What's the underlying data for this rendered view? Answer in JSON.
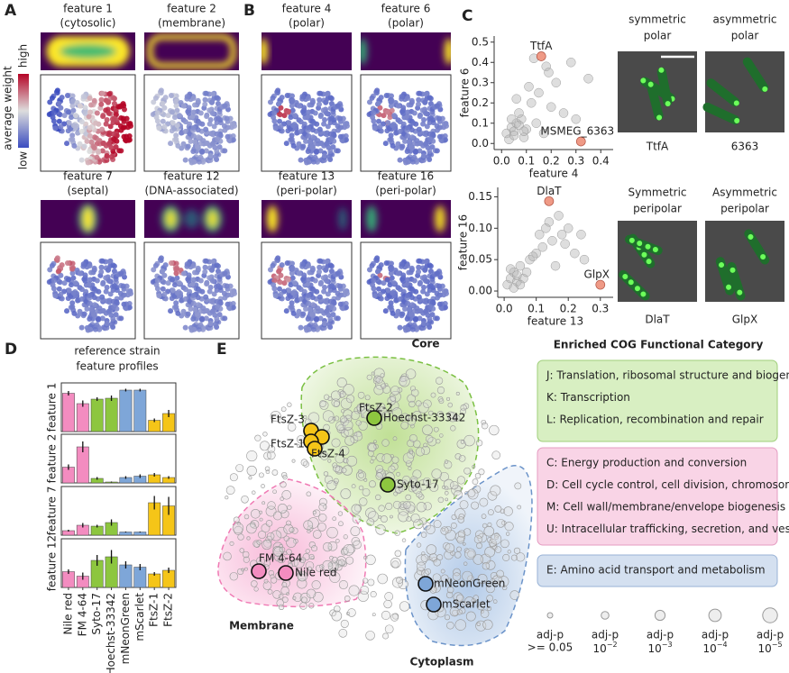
{
  "panels": {
    "A": {
      "label": "A",
      "features": [
        {
          "name": "feature 1",
          "kind": "(cytosolic)"
        },
        {
          "name": "feature 2",
          "kind": "(membrane)"
        },
        {
          "name": "feature 7",
          "kind": "(septal)"
        },
        {
          "name": "feature 12",
          "kind": "(DNA-associated)"
        }
      ],
      "colorbar": {
        "title": "average weight",
        "high": "high",
        "low": "low"
      }
    },
    "B": {
      "label": "B",
      "features": [
        {
          "name": "feature 4",
          "kind": "(polar)"
        },
        {
          "name": "feature 6",
          "kind": "(polar)"
        },
        {
          "name": "feature 13",
          "kind": "(peri-polar)"
        },
        {
          "name": "feature 16",
          "kind": "(peri-polar)"
        }
      ]
    },
    "C": {
      "label": "C",
      "images": [
        {
          "title": [
            "symmetric",
            "polar"
          ],
          "caption": "TtfA"
        },
        {
          "title": [
            "asymmetric",
            "polar"
          ],
          "caption": "6363"
        },
        {
          "title": [
            "Symmetric",
            "peripolar"
          ],
          "caption": "DlaT"
        },
        {
          "title": [
            "Asymmetric",
            "peripolar"
          ],
          "caption": "GlpX"
        }
      ]
    },
    "D": {
      "label": "D"
    },
    "E": {
      "label": "E",
      "regions": [
        "Core",
        "Membrane",
        "Cytoplasm"
      ],
      "markers": [
        "FtsZ-3",
        "FtsZ-2",
        "FtsZ-1",
        "FtsZ-4",
        "Hoechst-33342",
        "Syto-17",
        "FM 4-64",
        "Nile red",
        "mNeonGreen",
        "mScarlet"
      ]
    },
    "cog": {
      "title": "Enriched COG Functional Category",
      "groups": [
        [
          "J: Translation, ribosomal structure and biogenesis",
          "K: Transcription",
          "L: Replication, recombination and repair"
        ],
        [
          "C: Energy production and conversion",
          "D: Cell cycle control, cell division, chromosome partitioning",
          "M: Cell wall/membrane/envelope biogenesis",
          "U: Intracellular trafficking, secretion, and vesicular transport"
        ],
        [
          "E: Amino acid transport and metabolism"
        ]
      ]
    },
    "legend": [
      {
        "label": "adj-p",
        "value": ">= 0.05"
      },
      {
        "label": "adj-p",
        "base": "10",
        "exp": "−2"
      },
      {
        "label": "adj-p",
        "base": "10",
        "exp": "−3"
      },
      {
        "label": "adj-p",
        "base": "10",
        "exp": "−4"
      },
      {
        "label": "adj-p",
        "base": "10",
        "exp": "−5"
      }
    ]
  },
  "chart_data": [
    {
      "type": "scatter",
      "xlabel": "feature 4",
      "ylabel": "feature 6",
      "color": "#b5b5b5",
      "xlim": [
        -0.03,
        0.45
      ],
      "ylim": [
        -0.03,
        0.53
      ],
      "xticks": [
        {
          "value": 0,
          "label": "0.0"
        },
        0.1,
        0.2,
        0.3,
        0.4
      ],
      "yticks": [
        {
          "value": 0,
          "label": "0.0"
        },
        0.1,
        0.2,
        0.3,
        0.4,
        0.5
      ],
      "x": [
        0.02,
        0.04,
        0.05,
        0.06,
        0.08,
        0.1,
        0.03,
        0.07,
        0.12,
        0.15,
        0.2,
        0.18,
        0.25,
        0.22,
        0.14,
        0.09,
        0.11,
        0.13,
        0.3,
        0.17,
        0.06,
        0.04,
        0.19,
        0.28,
        0.35,
        0.05,
        0.07,
        0.09
      ],
      "y": [
        0.05,
        0.08,
        0.06,
        0.1,
        0.12,
        0.07,
        0.02,
        0.15,
        0.2,
        0.25,
        0.18,
        0.38,
        0.15,
        0.3,
        0.1,
        0.03,
        0.28,
        0.42,
        0.12,
        0.05,
        0.22,
        0.12,
        0.35,
        0.4,
        0.32,
        0.04,
        0.09,
        0.06
      ],
      "highlight_color": "#ef9a86",
      "highlights": [
        {
          "label": "TtfA",
          "x": 0.16,
          "y": 0.43
        },
        {
          "label": "MSMEG_6363",
          "x": 0.32,
          "y": 0.01
        }
      ]
    },
    {
      "type": "scatter",
      "xlabel": "feature 13",
      "ylabel": "feature 16",
      "color": "#b5b5b5",
      "xlim": [
        -0.02,
        0.34
      ],
      "ylim": [
        -0.01,
        0.165
      ],
      "xticks": [
        {
          "value": 0,
          "label": "0.0"
        },
        0.1,
        0.2,
        0.3
      ],
      "yticks": [
        {
          "value": 0,
          "label": "0.00"
        },
        0.05,
        {
          "value": 0.1,
          "label": "0.10"
        },
        0.15
      ],
      "x": [
        0.01,
        0.02,
        0.03,
        0.04,
        0.05,
        0.06,
        0.08,
        0.1,
        0.12,
        0.15,
        0.18,
        0.2,
        0.22,
        0.25,
        0.14,
        0.16,
        0.11,
        0.07,
        0.03,
        0.05,
        0.19,
        0.24,
        0.13,
        0.09,
        0.17,
        0.02,
        0.04
      ],
      "y": [
        0.01,
        0.02,
        0.03,
        0.015,
        0.04,
        0.02,
        0.05,
        0.06,
        0.07,
        0.08,
        0.09,
        0.1,
        0.06,
        0.05,
        0.11,
        0.04,
        0.09,
        0.03,
        0.005,
        0.01,
        0.075,
        0.09,
        0.1,
        0.055,
        0.12,
        0.035,
        0.025
      ],
      "highlight_color": "#ef9a86",
      "highlights": [
        {
          "label": "DlaT",
          "x": 0.14,
          "y": 0.143
        },
        {
          "label": "GlpX",
          "x": 0.3,
          "y": 0.01
        }
      ]
    },
    {
      "type": "bar",
      "title": [
        "reference strain",
        "feature profiles"
      ],
      "categories": [
        "Nile red",
        "FM 4-64",
        "Syto-17",
        "Hoechst-33342",
        "mNeonGreen",
        "mScarlet",
        "FtsZ-1",
        "FtsZ-2"
      ],
      "colors": [
        "#f38cc0",
        "#f38cc0",
        "#8dc63f",
        "#8dc63f",
        "#7ea6d8",
        "#7ea6d8",
        "#f5c518",
        "#f5c518"
      ],
      "ylim": [
        0,
        1
      ],
      "panels": [
        {
          "ylabel": "feature 1",
          "values": [
            0.85,
            0.62,
            0.72,
            0.74,
            0.92,
            0.92,
            0.25,
            0.4
          ],
          "errors": [
            0.05,
            0.07,
            0.04,
            0.06,
            0.03,
            0.03,
            0.04,
            0.08
          ]
        },
        {
          "ylabel": "feature 2",
          "values": [
            0.35,
            0.8,
            0.1,
            0.02,
            0.12,
            0.15,
            0.18,
            0.12
          ],
          "errors": [
            0.06,
            0.12,
            0.03,
            0.01,
            0.03,
            0.04,
            0.04,
            0.03
          ]
        },
        {
          "ylabel": "feature 7",
          "values": [
            0.1,
            0.22,
            0.2,
            0.28,
            0.07,
            0.07,
            0.72,
            0.65
          ],
          "errors": [
            0.02,
            0.05,
            0.03,
            0.07,
            0.01,
            0.01,
            0.15,
            0.2
          ]
        },
        {
          "ylabel": "feature 12",
          "values": [
            0.35,
            0.25,
            0.6,
            0.68,
            0.5,
            0.45,
            0.3,
            0.38
          ],
          "errors": [
            0.05,
            0.08,
            0.12,
            0.15,
            0.08,
            0.07,
            0.04,
            0.06
          ]
        }
      ]
    }
  ]
}
